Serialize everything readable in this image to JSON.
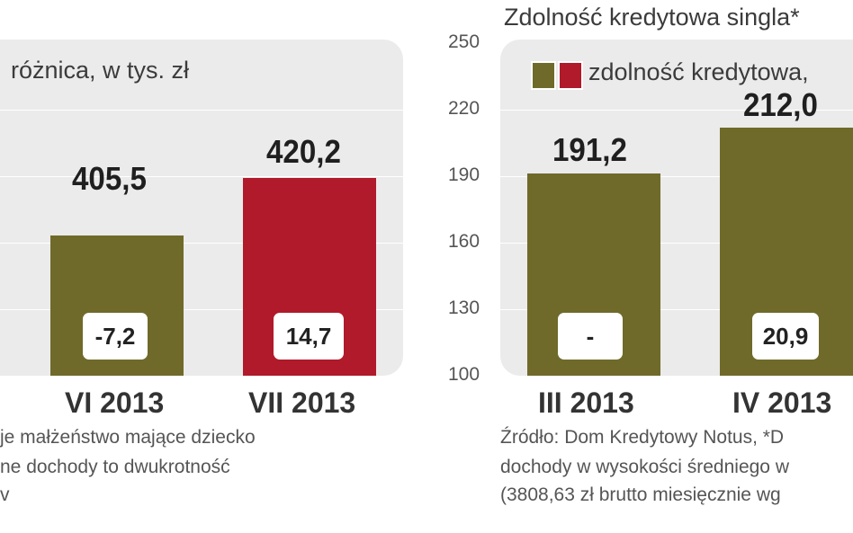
{
  "chart_data": [
    {
      "type": "bar",
      "title": "",
      "unit_label": "różnica, w tys. zł",
      "categories": [
        "VI 2013",
        "VII 2013"
      ],
      "series": [
        {
          "values": [
            405.5,
            420.2
          ]
        }
      ],
      "value_labels": [
        "405,5",
        "420,2"
      ],
      "diff_labels": [
        "-7,2",
        "14,7"
      ],
      "bar_colors": [
        "#6f6a2a",
        "#b01a2a"
      ],
      "footnote_lines": [
        "je małżeństwo mające dziecko",
        "ne dochody to dwukrotność",
        "v"
      ]
    },
    {
      "type": "bar",
      "title": "Zdolność kredytowa singla*",
      "legend_label": "zdolność kredytowa,",
      "legend_colors": [
        "#6f6a2a",
        "#b01a2a"
      ],
      "categories": [
        "III 2013",
        "IV 2013"
      ],
      "series": [
        {
          "values": [
            191.2,
            212.0
          ]
        }
      ],
      "value_labels": [
        "191,2",
        "212,0"
      ],
      "diff_labels": [
        "-",
        "20,9"
      ],
      "bar_colors": [
        "#6f6a2a",
        "#6f6a2a"
      ],
      "y_ticks": [
        "250",
        "220",
        "190",
        "160",
        "130",
        "100"
      ],
      "ylim": [
        100,
        250
      ],
      "grid": true,
      "footnote_lines": [
        "Źródło: Dom Kredytowy Notus, *D",
        "dochody w wysokości średniego w",
        "(3808,63 zł brutto miesięcznie wg"
      ]
    }
  ]
}
